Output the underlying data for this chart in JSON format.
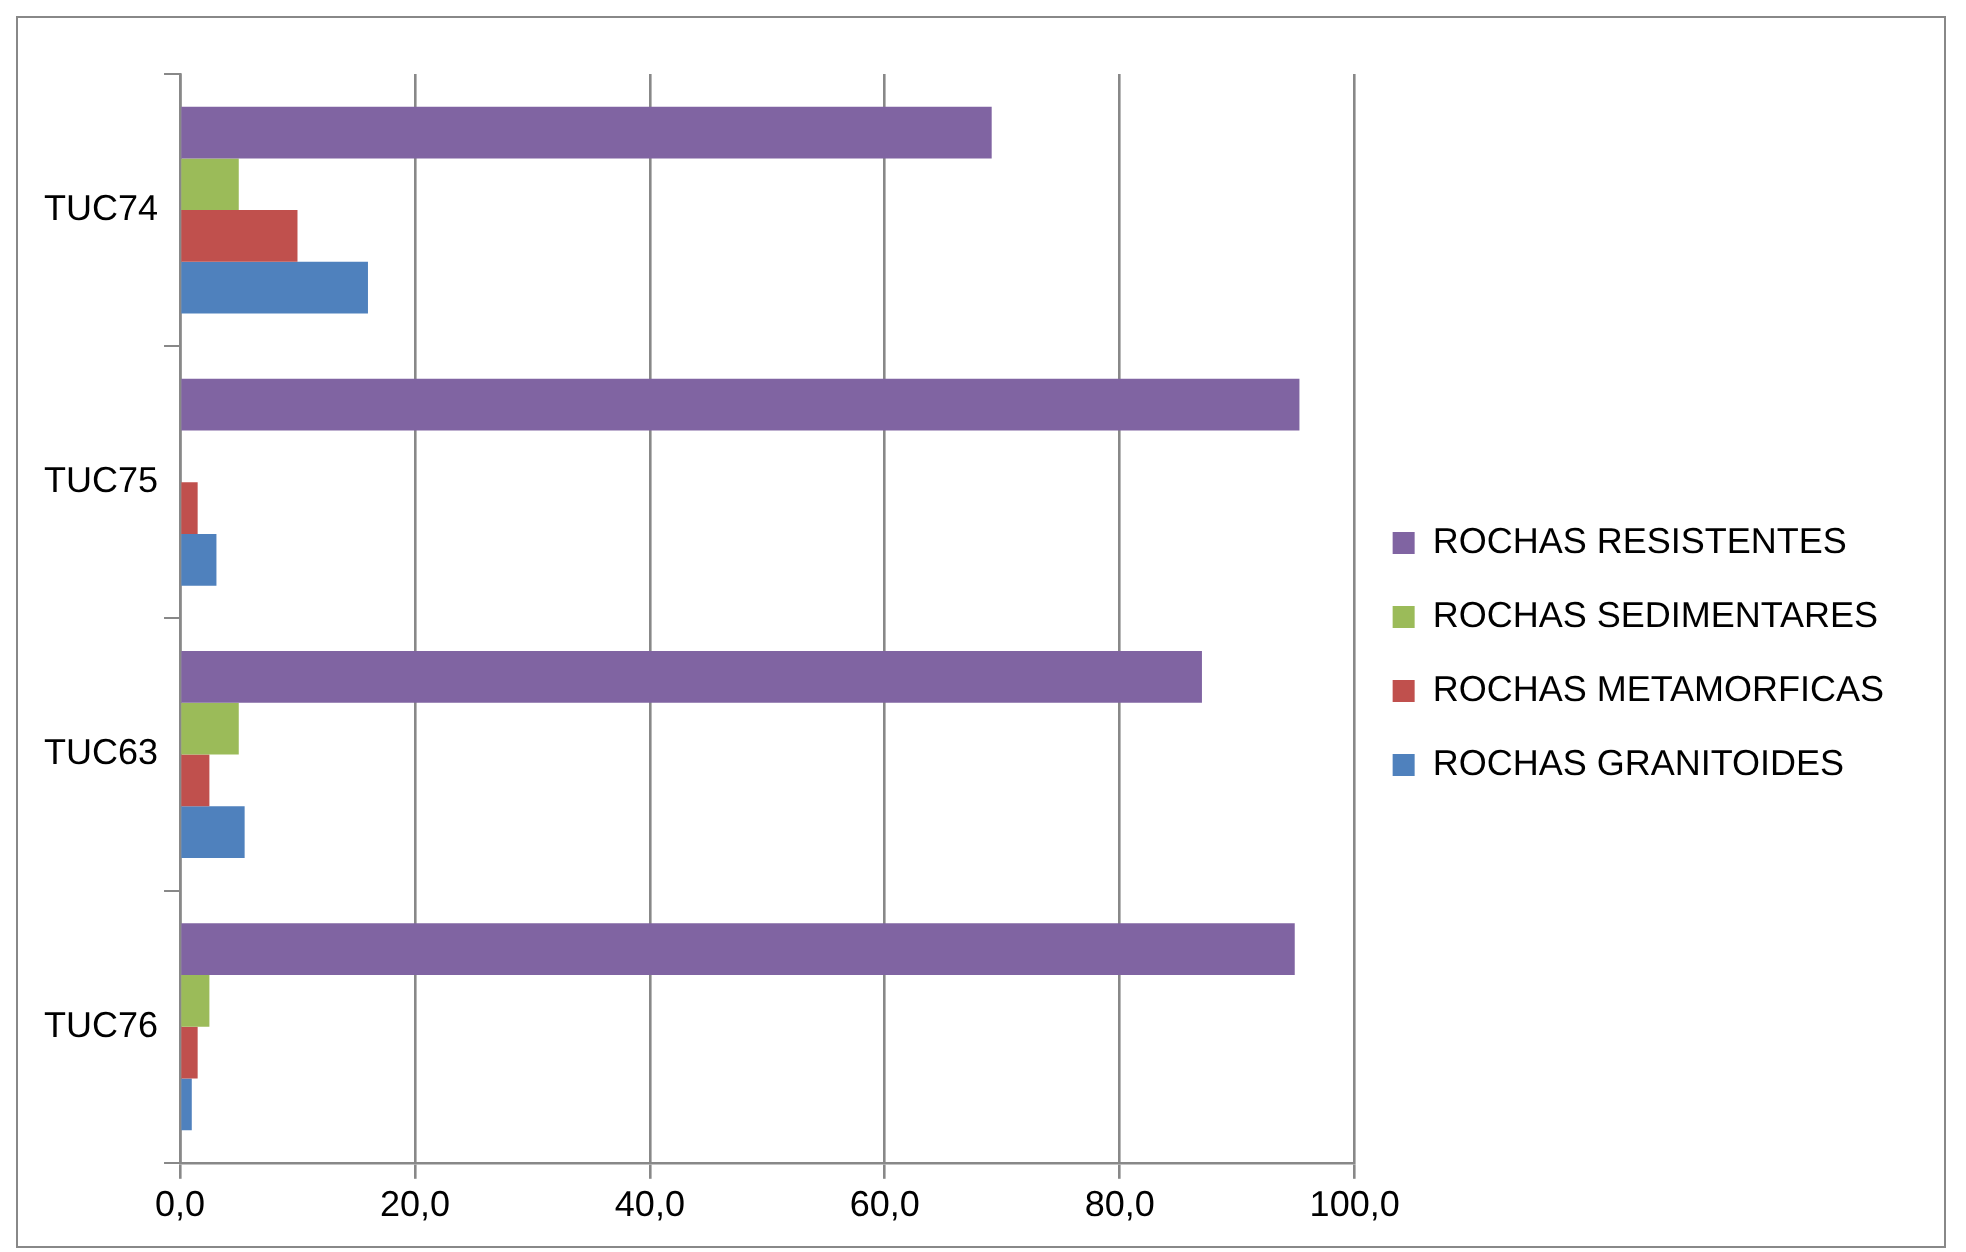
{
  "chart_data": {
    "type": "bar",
    "orientation": "horizontal",
    "categories": [
      "TUC74",
      "TUC75",
      "TUC63",
      "TUC76"
    ],
    "series": [
      {
        "name": "ROCHAS RESISTENTES",
        "color": "#8064a2",
        "values": [
          69.1,
          95.3,
          87.0,
          94.9
        ]
      },
      {
        "name": "ROCHAS SEDIMENTARES",
        "color": "#9bbb59",
        "values": [
          5.0,
          0,
          5.0,
          2.5
        ]
      },
      {
        "name": "ROCHAS METAMORFICAS",
        "color": "#c0504d",
        "values": [
          10.0,
          1.5,
          2.5,
          1.5
        ]
      },
      {
        "name": "ROCHAS GRANITOIDES",
        "color": "#4f81bd",
        "values": [
          16.0,
          3.1,
          5.5,
          1.0
        ]
      }
    ],
    "xlim": [
      0,
      100
    ],
    "xticks": [
      {
        "value": 0,
        "label": "0,0"
      },
      {
        "value": 20,
        "label": "20,0"
      },
      {
        "value": 40,
        "label": "40,0"
      },
      {
        "value": 60,
        "label": "60,0"
      },
      {
        "value": 80,
        "label": "80,0"
      },
      {
        "value": 100,
        "label": "100,0"
      }
    ],
    "grid": "x",
    "legend": "right"
  }
}
